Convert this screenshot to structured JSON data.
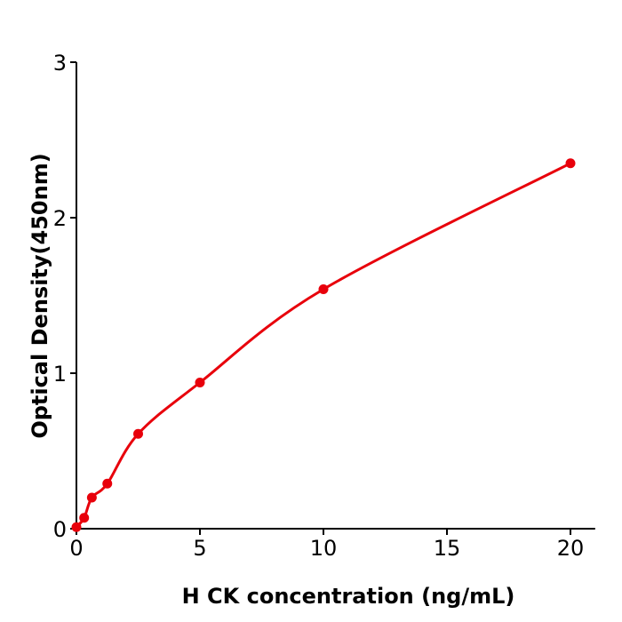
{
  "chart_data": {
    "type": "scatter",
    "title": "",
    "xlabel": "H  CK concentration (ng/mL)",
    "ylabel": "Optical Density(450nm)",
    "xlim": [
      0,
      21
    ],
    "ylim": [
      0,
      3
    ],
    "xticks": [
      0,
      5,
      10,
      15,
      20
    ],
    "yticks": [
      0,
      1,
      2,
      3
    ],
    "grid": false,
    "color": "#e8000b",
    "series": [
      {
        "x": [
          0,
          0.3125,
          0.625,
          1.25,
          2.5,
          5,
          10,
          20
        ],
        "y": [
          0.01,
          0.07,
          0.2,
          0.29,
          0.61,
          0.94,
          1.54,
          2.35
        ],
        "fit_curve": true
      }
    ]
  }
}
